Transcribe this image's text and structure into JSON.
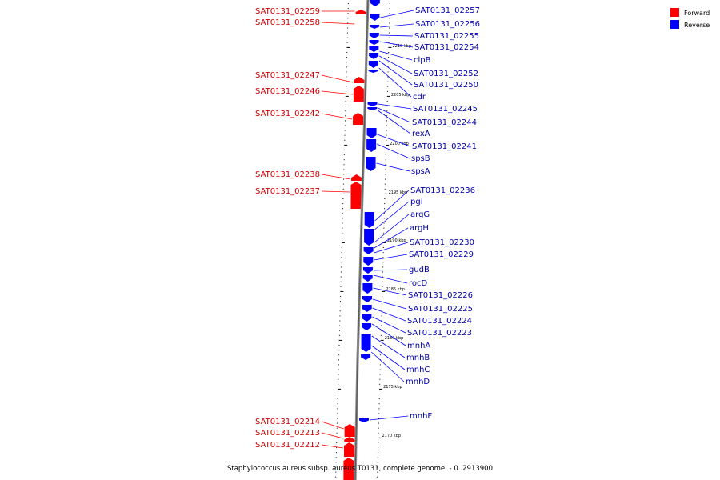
{
  "caption": "Staphylococcus aureus subsp. aureus T0131, complete genome. - 0..2913900",
  "legend": [
    {
      "label": "Forward",
      "color": "#ff0000"
    },
    {
      "label": "Reverse",
      "color": "#0000ff"
    }
  ],
  "ticks": [
    "2210 kbp",
    "2205 kbp",
    "2200 kbp",
    "2195 kbp",
    "2190 kbp",
    "2185 kbp",
    "2180 kbp",
    "2175 kbp",
    "2170 kbp"
  ],
  "forward_genes": [
    "SAT0131_02259",
    "SAT0131_02258",
    "SAT0131_02247",
    "SAT0131_02246",
    "SAT0131_02242",
    "SAT0131_02238",
    "SAT0131_02237",
    "SAT0131_02214",
    "SAT0131_02213",
    "SAT0131_02212"
  ],
  "reverse_genes": [
    "SAT0131_02257",
    "SAT0131_02256",
    "SAT0131_02255",
    "SAT0131_02254",
    "clpB",
    "SAT0131_02252",
    "SAT0131_02250",
    "cdr",
    "SAT0131_02245",
    "SAT0131_02244",
    "rexA",
    "SAT0131_02241",
    "spsB",
    "spsA",
    "SAT0131_02236",
    "pgi",
    "argG",
    "argH",
    "SAT0131_02230",
    "SAT0131_02229",
    "gudB",
    "rocD",
    "SAT0131_02226",
    "SAT0131_02225",
    "SAT0131_02224",
    "SAT0131_02223",
    "mnhA",
    "mnhB",
    "mnhC",
    "mnhD",
    "mnhF"
  ]
}
